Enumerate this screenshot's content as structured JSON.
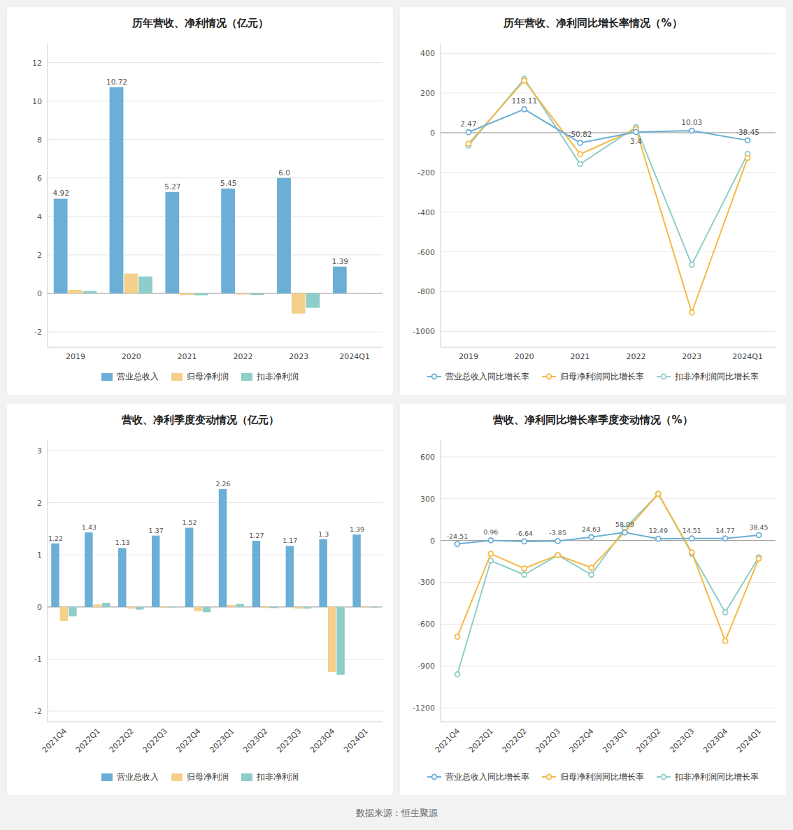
{
  "chart_data": [
    {
      "type": "bar",
      "title": "历年营收、净利情况（亿元）",
      "categories": [
        "2019",
        "2020",
        "2021",
        "2022",
        "2023",
        "2024Q1"
      ],
      "series": [
        {
          "name": "营业总收入",
          "color": "#6baed6",
          "values": [
            4.92,
            10.72,
            5.27,
            5.45,
            6.0,
            1.39
          ],
          "data_labels": true,
          "value_labels": [
            "4.92",
            "10.72",
            "5.27",
            "5.45",
            "6.0",
            "1.39"
          ]
        },
        {
          "name": "归母净利润",
          "color": "#f5d08c",
          "values": [
            0.18,
            1.03,
            -0.08,
            -0.06,
            -1.05,
            0.02
          ]
        },
        {
          "name": "扣非净利润",
          "color": "#8ecdc8",
          "values": [
            0.12,
            0.88,
            -0.1,
            -0.08,
            -0.75,
            0.01
          ]
        }
      ],
      "ylim": [
        -2.8,
        13.0
      ],
      "yticks": [
        -2,
        0,
        2,
        4,
        6,
        8,
        10,
        12
      ],
      "grid": true,
      "legend": "bottom"
    },
    {
      "type": "line",
      "title": "历年营收、净利同比增长率情况（%）",
      "categories": [
        "2019",
        "2020",
        "2021",
        "2022",
        "2023",
        "2024Q1"
      ],
      "series": [
        {
          "name": "营业总收入同比增长率",
          "color": "#6baed6",
          "marker": "circle",
          "values": [
            2.47,
            118.11,
            -50.82,
            3.4,
            10.03,
            -38.45
          ],
          "data_labels": true
        },
        {
          "name": "归母净利润同比增长率",
          "color": "#f5b942",
          "marker": "circle",
          "values": [
            -55,
            262,
            -108,
            18,
            -905,
            -127
          ]
        },
        {
          "name": "扣非净利润同比增长率",
          "color": "#8ecdc8",
          "marker": "circle",
          "values": [
            -65,
            272,
            -158,
            28,
            -665,
            -107
          ]
        }
      ],
      "ylim": [
        -1080,
        450
      ],
      "yticks": [
        -1000,
        -800,
        -600,
        -400,
        -200,
        0,
        200,
        400
      ],
      "grid": true,
      "legend": "bottom"
    },
    {
      "type": "bar",
      "title": "营收、净利季度变动情况（亿元）",
      "categories": [
        "2021Q4",
        "2022Q1",
        "2022Q2",
        "2022Q3",
        "2022Q4",
        "2023Q1",
        "2023Q2",
        "2023Q3",
        "2023Q4",
        "2024Q1"
      ],
      "series": [
        {
          "name": "营业总收入",
          "color": "#6baed6",
          "values": [
            1.22,
            1.43,
            1.13,
            1.37,
            1.52,
            2.26,
            1.27,
            1.17,
            1.3,
            1.39
          ],
          "data_labels": true
        },
        {
          "name": "归母净利润",
          "color": "#f5d08c",
          "values": [
            -0.27,
            0.05,
            -0.03,
            -0.02,
            -0.08,
            0.04,
            -0.02,
            -0.03,
            -1.25,
            0.02
          ]
        },
        {
          "name": "扣非净利润",
          "color": "#8ecdc8",
          "values": [
            -0.18,
            0.08,
            -0.05,
            -0.01,
            -0.1,
            0.06,
            -0.02,
            -0.03,
            -1.3,
            -0.01
          ]
        }
      ],
      "ylim": [
        -2.2,
        3.2
      ],
      "yticks": [
        -2,
        -1,
        0,
        1,
        2,
        3
      ],
      "grid": true,
      "legend": "bottom"
    },
    {
      "type": "line",
      "title": "营收、净利同比增长率季度变动情况（%）",
      "categories": [
        "2021Q4",
        "2022Q1",
        "2022Q2",
        "2022Q3",
        "2022Q4",
        "2023Q1",
        "2023Q2",
        "2023Q3",
        "2023Q4",
        "2024Q1"
      ],
      "series": [
        {
          "name": "营业总收入同比增长率",
          "color": "#6baed6",
          "marker": "circle",
          "values": [
            -24.51,
            0.96,
            -6.64,
            -3.85,
            24.63,
            58.09,
            12.49,
            14.51,
            14.77,
            38.45
          ],
          "data_labels": true
        },
        {
          "name": "归母净利润同比增长率",
          "color": "#f5b942",
          "marker": "circle",
          "values": [
            -690,
            -95,
            -200,
            -105,
            -195,
            60,
            335,
            -85,
            -720,
            -130
          ]
        },
        {
          "name": "扣非净利润同比增长率",
          "color": "#8ecdc8",
          "marker": "circle",
          "values": [
            -960,
            -145,
            -245,
            -105,
            -245,
            85,
            335,
            -95,
            -515,
            -120
          ]
        }
      ],
      "ylim": [
        -1300,
        720
      ],
      "yticks": [
        -1200,
        -900,
        -600,
        -300,
        0,
        300,
        600
      ],
      "grid": true,
      "legend": "bottom"
    }
  ],
  "source": "数据来源：恒生聚源"
}
